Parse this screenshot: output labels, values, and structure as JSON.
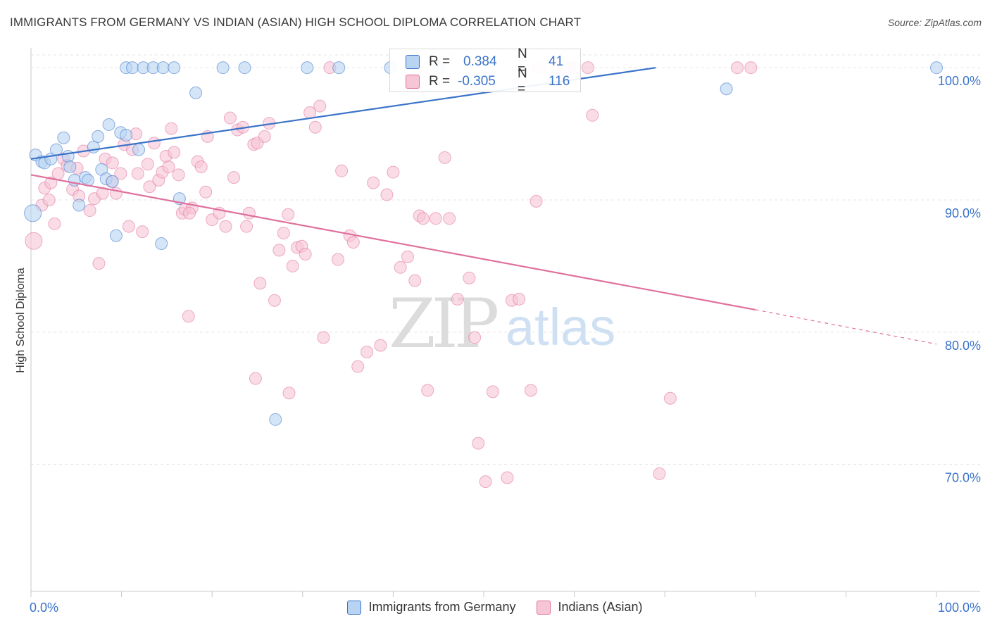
{
  "title": "IMMIGRANTS FROM GERMANY VS INDIAN (ASIAN) HIGH SCHOOL DIPLOMA CORRELATION CHART",
  "source": "Source: ZipAtlas.com",
  "watermark": {
    "zip": "ZIP",
    "atlas": "atlas"
  },
  "colors": {
    "blue": "#3a73c9",
    "blue_fill": "#b9d3f3",
    "pink": "#e0709c",
    "pink_fill": "#f6c5d6",
    "grid": "#e4e4e4"
  },
  "stats": [
    {
      "r_label": "R =",
      "r_value": "0.384",
      "n_label": "N =",
      "n_value": "41",
      "series": "blue"
    },
    {
      "r_label": "R =",
      "r_value": "-0.305",
      "n_label": "N =",
      "n_value": "116",
      "series": "pink"
    }
  ],
  "legend": [
    {
      "label": "Immigrants from Germany",
      "series": "blue"
    },
    {
      "label": "Indians (Asian)",
      "series": "pink"
    }
  ],
  "chart_data": {
    "type": "scatter",
    "ylabel": "High School Diploma",
    "xlabel": "",
    "x_tick_labels": [
      "0.0%",
      "100.0%"
    ],
    "y_tick_labels": [
      "70.0%",
      "80.0%",
      "90.0%",
      "100.0%"
    ],
    "xlim": [
      0,
      100
    ],
    "ylim": [
      60.4,
      101.5
    ],
    "y_ticks": [
      70,
      80,
      90,
      100
    ],
    "grid": true,
    "legend_position": "bottom",
    "series": [
      {
        "name": "Immigrants from Germany",
        "color": "blue",
        "trend": {
          "x": [
            0,
            69
          ],
          "y": [
            93.1,
            100.0
          ],
          "dashed_to": null
        },
        "points": [
          [
            0.2,
            89.0
          ],
          [
            0.5,
            93.4
          ],
          [
            1.2,
            92.9
          ],
          [
            1.5,
            92.8
          ],
          [
            2.2,
            93.1
          ],
          [
            2.8,
            93.8
          ],
          [
            3.6,
            94.7
          ],
          [
            4.1,
            93.3
          ],
          [
            4.3,
            92.5
          ],
          [
            4.8,
            91.5
          ],
          [
            5.3,
            89.6
          ],
          [
            6.0,
            91.7
          ],
          [
            6.3,
            91.5
          ],
          [
            6.9,
            94.0
          ],
          [
            7.4,
            94.8
          ],
          [
            7.8,
            92.3
          ],
          [
            8.3,
            91.6
          ],
          [
            8.6,
            95.7
          ],
          [
            9.4,
            87.3
          ],
          [
            9.9,
            95.1
          ],
          [
            10.5,
            94.9
          ],
          [
            10.5,
            100.0
          ],
          [
            11.2,
            100.0
          ],
          [
            11.9,
            93.8
          ],
          [
            12.4,
            100.0
          ],
          [
            13.5,
            100.0
          ],
          [
            14.4,
            86.7
          ],
          [
            14.6,
            100.0
          ],
          [
            15.8,
            100.0
          ],
          [
            16.4,
            90.1
          ],
          [
            18.2,
            98.1
          ],
          [
            21.2,
            100.0
          ],
          [
            23.6,
            100.0
          ],
          [
            27.0,
            73.4
          ],
          [
            30.5,
            100.0
          ],
          [
            34.0,
            100.0
          ],
          [
            39.7,
            100.0
          ],
          [
            45.0,
            100.0
          ],
          [
            76.8,
            98.4
          ],
          [
            100.0,
            100.0
          ],
          [
            9.0,
            91.4
          ]
        ]
      },
      {
        "name": "Indians (Asian)",
        "color": "pink",
        "trend": {
          "x": [
            0,
            80
          ],
          "y": [
            91.9,
            81.7
          ],
          "dashed_to": [
            100,
            79.1
          ]
        },
        "points": [
          [
            0.3,
            86.9
          ],
          [
            1.2,
            89.6
          ],
          [
            1.5,
            90.9
          ],
          [
            2.0,
            90.0
          ],
          [
            2.2,
            91.3
          ],
          [
            2.6,
            88.2
          ],
          [
            3.0,
            92.0
          ],
          [
            3.6,
            93.1
          ],
          [
            4.0,
            92.6
          ],
          [
            4.6,
            90.8
          ],
          [
            5.1,
            92.4
          ],
          [
            5.3,
            90.3
          ],
          [
            5.8,
            93.7
          ],
          [
            6.5,
            89.2
          ],
          [
            7.0,
            90.1
          ],
          [
            7.5,
            85.2
          ],
          [
            7.9,
            90.5
          ],
          [
            8.2,
            93.1
          ],
          [
            8.9,
            91.4
          ],
          [
            9.0,
            92.8
          ],
          [
            9.4,
            90.5
          ],
          [
            9.9,
            92.0
          ],
          [
            10.3,
            94.2
          ],
          [
            10.8,
            88.0
          ],
          [
            11.2,
            93.8
          ],
          [
            11.6,
            95.0
          ],
          [
            11.8,
            92.0
          ],
          [
            12.3,
            87.6
          ],
          [
            12.9,
            92.7
          ],
          [
            13.1,
            91.0
          ],
          [
            13.6,
            94.3
          ],
          [
            14.1,
            91.5
          ],
          [
            14.5,
            92.1
          ],
          [
            14.9,
            93.3
          ],
          [
            15.2,
            92.5
          ],
          [
            15.5,
            95.4
          ],
          [
            15.8,
            93.6
          ],
          [
            16.3,
            91.9
          ],
          [
            16.7,
            89.0
          ],
          [
            17.0,
            89.3
          ],
          [
            17.4,
            81.2
          ],
          [
            17.8,
            89.4
          ],
          [
            18.4,
            92.9
          ],
          [
            18.8,
            92.5
          ],
          [
            19.3,
            90.6
          ],
          [
            19.5,
            94.8
          ],
          [
            20.0,
            88.5
          ],
          [
            20.8,
            89.0
          ],
          [
            21.5,
            88.0
          ],
          [
            22.0,
            96.2
          ],
          [
            22.4,
            91.7
          ],
          [
            22.8,
            95.3
          ],
          [
            23.4,
            95.5
          ],
          [
            23.8,
            88.0
          ],
          [
            24.1,
            89.0
          ],
          [
            24.6,
            94.2
          ],
          [
            25.0,
            94.3
          ],
          [
            25.3,
            83.7
          ],
          [
            25.8,
            94.8
          ],
          [
            26.3,
            95.8
          ],
          [
            26.9,
            82.4
          ],
          [
            27.4,
            86.2
          ],
          [
            27.9,
            87.5
          ],
          [
            28.4,
            88.9
          ],
          [
            28.9,
            85.0
          ],
          [
            29.4,
            86.4
          ],
          [
            29.9,
            86.5
          ],
          [
            30.3,
            85.9
          ],
          [
            30.8,
            96.6
          ],
          [
            31.4,
            95.5
          ],
          [
            31.9,
            97.1
          ],
          [
            32.3,
            79.6
          ],
          [
            33.0,
            100.0
          ],
          [
            33.9,
            85.5
          ],
          [
            34.3,
            92.2
          ],
          [
            35.2,
            87.3
          ],
          [
            35.6,
            86.8
          ],
          [
            36.1,
            77.4
          ],
          [
            37.1,
            78.5
          ],
          [
            37.8,
            91.3
          ],
          [
            38.6,
            79.0
          ],
          [
            39.3,
            90.4
          ],
          [
            40.0,
            92.1
          ],
          [
            40.8,
            84.9
          ],
          [
            41.6,
            85.7
          ],
          [
            42.4,
            83.9
          ],
          [
            42.9,
            88.8
          ],
          [
            43.3,
            88.6
          ],
          [
            43.8,
            75.6
          ],
          [
            44.7,
            88.6
          ],
          [
            45.7,
            93.2
          ],
          [
            46.2,
            88.6
          ],
          [
            47.1,
            82.5
          ],
          [
            48.4,
            84.1
          ],
          [
            49.0,
            79.6
          ],
          [
            49.4,
            71.6
          ],
          [
            50.2,
            68.7
          ],
          [
            51.0,
            75.5
          ],
          [
            52.6,
            69.0
          ],
          [
            53.1,
            82.4
          ],
          [
            53.9,
            82.5
          ],
          [
            55.2,
            75.6
          ],
          [
            55.8,
            89.9
          ],
          [
            56.1,
            100.0
          ],
          [
            58.0,
            100.0
          ],
          [
            59.5,
            100.0
          ],
          [
            60.0,
            100.0
          ],
          [
            61.5,
            100.0
          ],
          [
            62.0,
            96.4
          ],
          [
            69.4,
            69.3
          ],
          [
            70.6,
            75.0
          ],
          [
            78.0,
            100.0
          ],
          [
            79.5,
            100.0
          ],
          [
            17.5,
            89.0
          ],
          [
            28.5,
            75.4
          ],
          [
            24.8,
            76.5
          ]
        ]
      }
    ]
  }
}
